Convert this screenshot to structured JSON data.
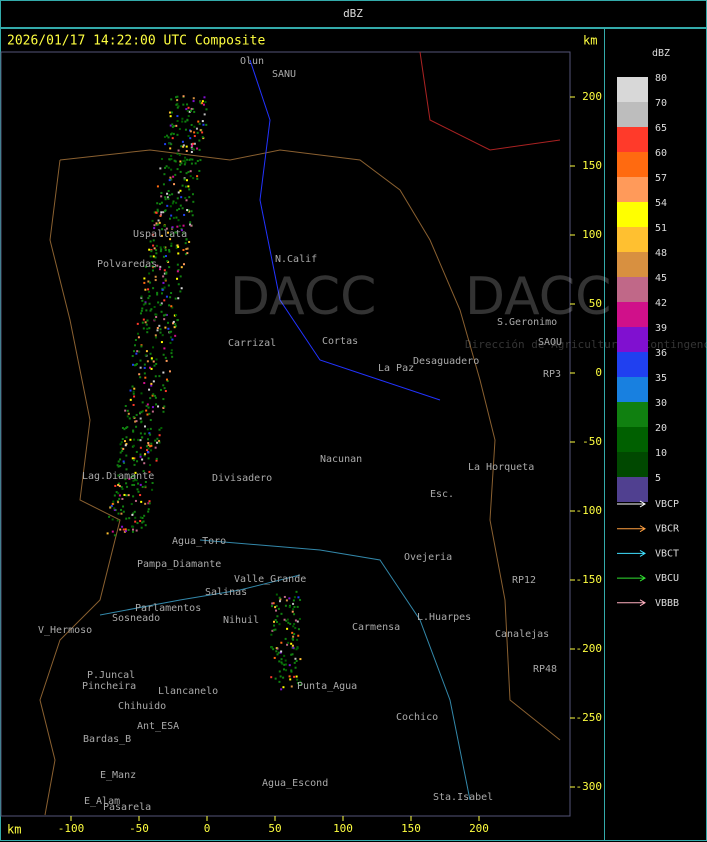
{
  "header": {
    "title": "dBZ"
  },
  "map": {
    "title": "2026/01/17 14:22:00 UTC Composite",
    "y_unit": "km",
    "x_unit": "km",
    "yticks": [
      200,
      150,
      100,
      50,
      0,
      -50,
      -100,
      -150,
      -200,
      -250,
      -300
    ],
    "xticks": [
      -100,
      -50,
      0,
      50,
      100,
      150,
      200
    ],
    "watermark": {
      "logo": "DACC",
      "caption": "Dirección de Agricultura y Contingencias Climáticas"
    },
    "places": [
      "Olun",
      "SANU",
      "Uspallata",
      "Polvaredas",
      "N.Calif",
      "Carrizal",
      "Cortas",
      "La Paz",
      "Desaguadero",
      "S.Geronimo",
      "SAOU",
      "RP3",
      "Nacunan",
      "La Horqueta",
      "Divisadero",
      "Lag.Diamante",
      "Esc.",
      "Agua_Toro",
      "Pampa_Diamante",
      "Valle_Grande",
      "Salinas",
      "Parlamentos",
      "Sosneado",
      "Nihuil",
      "V_Hermoso",
      "Ovejeria",
      "Carmensa",
      "L.Huarpes",
      "Canalejas",
      "Punta_Agua",
      "P.Juncal",
      "Pincheira",
      "Llancanelo",
      "Chihuido",
      "Ant_ESA",
      "Bardas_B",
      "Cochico",
      "E_Manz",
      "E_Alam",
      "Pasarela",
      "Agua_Escond",
      "Sta.Isabel",
      "RP12",
      "RP48"
    ]
  },
  "legend": {
    "unit": "dBZ",
    "levels": [
      {
        "label": "80",
        "color": "#d8d8d8"
      },
      {
        "label": "70",
        "color": "#bdbdbd"
      },
      {
        "label": "65",
        "color": "#ff3a2a"
      },
      {
        "label": "60",
        "color": "#ff6a10"
      },
      {
        "label": "57",
        "color": "#ff9a5a"
      },
      {
        "label": "54",
        "color": "#ffff00"
      },
      {
        "label": "51",
        "color": "#ffc030"
      },
      {
        "label": "48",
        "color": "#d89040"
      },
      {
        "label": "45",
        "color": "#c06888"
      },
      {
        "label": "42",
        "color": "#d0108a"
      },
      {
        "label": "39",
        "color": "#8010d0"
      },
      {
        "label": "36",
        "color": "#2040f0"
      },
      {
        "label": "35",
        "color": "#1880e0"
      },
      {
        "label": "30",
        "color": "#108010"
      },
      {
        "label": "20",
        "color": "#006000"
      },
      {
        "label": "10",
        "color": "#004800"
      },
      {
        "label": "5",
        "color": "#504090"
      }
    ],
    "radars": [
      {
        "name": "VBCP",
        "color": "#ffffff"
      },
      {
        "name": "VBCR",
        "color": "#ffa040"
      },
      {
        "name": "VBCT",
        "color": "#40e0ff"
      },
      {
        "name": "VBCU",
        "color": "#30e030"
      },
      {
        "name": "VBBB",
        "color": "#ffb0c0"
      }
    ]
  }
}
